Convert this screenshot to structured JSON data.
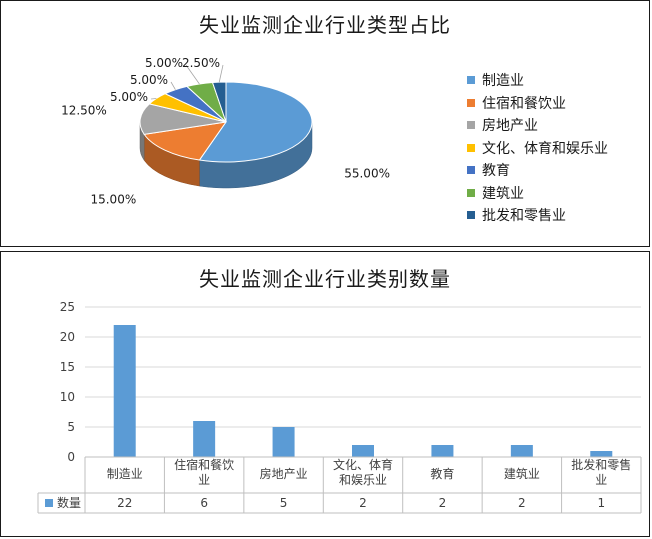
{
  "chart_data": [
    {
      "type": "pie",
      "title": "失业监测企业行业类型占比",
      "categories": [
        "制造业",
        "住宿和餐饮业",
        "房地产业",
        "文化、体育和娱乐业",
        "教育",
        "建筑业",
        "批发和零售业"
      ],
      "values": [
        55.0,
        15.0,
        12.5,
        5.0,
        5.0,
        5.0,
        2.5
      ],
      "labels": [
        "55.00%",
        "15.00%",
        "12.50%",
        "5.00%",
        "5.00%",
        "5.00%",
        "2.50%"
      ],
      "colors": [
        "#5b9bd5",
        "#ed7d31",
        "#a5a5a5",
        "#ffc000",
        "#4472c4",
        "#70ad47",
        "#255e91"
      ],
      "legend_position": "right"
    },
    {
      "type": "bar",
      "title": "失业监测企业行业类别数量",
      "categories": [
        "制造业",
        "住宿和餐饮业",
        "房地产业",
        "文化、体育和娱乐业",
        "教育",
        "建筑业",
        "批发和零售业"
      ],
      "tick_labels": [
        [
          "制造业"
        ],
        [
          "住宿和餐饮",
          "业"
        ],
        [
          "房地产业"
        ],
        [
          "文化、体育",
          "和娱乐业"
        ],
        [
          "教育"
        ],
        [
          "建筑业"
        ],
        [
          "批发和零售",
          "业"
        ]
      ],
      "series": [
        {
          "name": "数量",
          "values": [
            22,
            6,
            5,
            2,
            2,
            2,
            1
          ],
          "color": "#5b9bd5"
        }
      ],
      "ylim": [
        0,
        25
      ],
      "yticks": [
        0,
        5,
        10,
        15,
        20,
        25
      ],
      "grid": true,
      "data_table": true
    }
  ]
}
